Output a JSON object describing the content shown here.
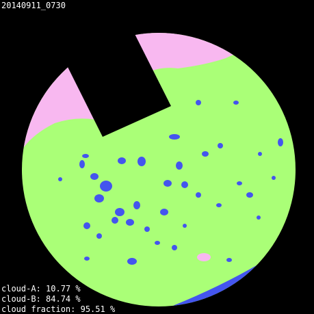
{
  "header": {
    "title": "20140911_0730"
  },
  "stats": [
    "cloud-A: 10.77 %",
    "cloud-B: 84.74 %",
    "cloud fraction: 95.51 %"
  ]
}
